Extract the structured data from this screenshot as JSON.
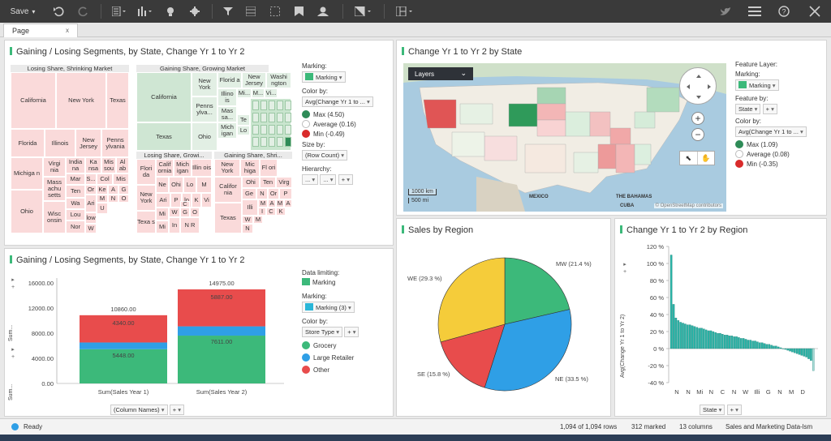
{
  "toolbar": {
    "save_label": "Save",
    "icons": [
      "undo-icon",
      "redo-icon",
      "visualization-list-icon",
      "bar-chart-icon",
      "lightbulb-icon",
      "gear-icon",
      "filter-icon",
      "data-table-icon",
      "select-icon",
      "bookmark-icon",
      "users-icon",
      "map-icon",
      "layout-icon",
      "twitter-icon",
      "menu-icon",
      "help-icon",
      "close-icon"
    ]
  },
  "tabs": [
    {
      "label": "Page",
      "close": "x"
    }
  ],
  "treemap_panel": {
    "title": "Gaining / Losing Segments, by State, Change Yr 1 to Yr 2",
    "headers": {
      "losing": "Losing Share, Shrinking Market",
      "gaining": "Gaining Share, Growing Market",
      "losing_growing": "Losing Share, Growi...",
      "gaining_shrinking": "Gaining Share, Shri..."
    },
    "cells": {
      "california_l": "California",
      "newyork_l": "New York",
      "texas_l": "Texas",
      "florida": "Florida",
      "illinois": "Illinois",
      "newjersey": "New Jersey",
      "pennsylvania": "Penns ylvania",
      "michigan": "Michiga n",
      "virginia": "Virgi nia",
      "india": "India na",
      "kansas": "Ka nsa",
      "missouri": "Mis sou",
      "alabama": "Al ab",
      "mass": "Mass achu setts",
      "mar": "Mar",
      "s": "S...",
      "col": "Col",
      "mis2": "Mis",
      "ten": "Ten",
      "or": "Or",
      "ke": "Ke",
      "a": "A",
      "g": "G",
      "wa": "Wa",
      "m": "M",
      "n": "N",
      "o": "O",
      "ohio_l": "Ohio",
      "wisc": "Wisc onsin",
      "lou": "Lou",
      "nor": "Nor",
      "ari": "Ari",
      "u": "U",
      "low": "low",
      "w": "W",
      "california_g": "California",
      "newyork_g": "New York",
      "florida_g": "Florid a",
      "newjersey_g": "New Jersey",
      "washington": "Washi ngton",
      "texas_g": "Texas",
      "illinois_g": "Illino is",
      "pennsylvania_g": "Penns ylva...",
      "mass_g": "Mas sa...",
      "michigan_g": "Mich igan",
      "ohio_g": "Ohio",
      "mi": "Mi...",
      "m2": "M...",
      "vi": "Vi...",
      "te": "Te",
      "lo": "Lo",
      "flor_ls": "Flori da",
      "calif_ls": "Calif ornia",
      "mich_ls": "Mich igan",
      "illin_ls": "Illin ois",
      "ne": "Ne",
      "ohi": "Ohi",
      "lo2": "Lo",
      "m3": "M",
      "newyork_ls": "New York",
      "ari2": "Ari",
      "p": "P",
      "lo3": "lo",
      "k": "K",
      "vi2": "Vi",
      "texa_ls": "Texa s",
      "mi2": "Mi",
      "w2": "W",
      "g2": "G",
      "o2": "O",
      "c": "C",
      "min": "Mi",
      "in": "In",
      "nr": "N R",
      "newyork_gs": "New York",
      "mich_gs": "Mic higa",
      "fl_gs": "Fl ori",
      "calif_gs": "Califor nia",
      "ohi_gs": "Ohi",
      "ten_gs": "Ten",
      "virg_gs": "Virg",
      "ge": "Ge",
      "n2": "N",
      "or2": "Or",
      "p2": "P",
      "illi": "Illi",
      "m4": "M",
      "a2": "A",
      "m5": "M",
      "a3": "A",
      "i": "I",
      "c2": "C",
      "k2": "K",
      "texas_gs": "Texas",
      "w3": "W",
      "m6": "M",
      "n3": "N"
    },
    "side": {
      "marking_label": "Marking:",
      "marking_value": "Marking",
      "colorby_label": "Color by:",
      "colorby_value": "Avg(Change Yr 1 to ...",
      "max": "Max (4.50)",
      "avg": "Average (0.16)",
      "min": "Min (-0.49)",
      "sizeby_label": "Size by:",
      "sizeby_value": "(Row Count)",
      "hierarchy_label": "Hierarchy:",
      "hierarchy_value": "...",
      "hierarchy_value2": "...",
      "plus": "+"
    }
  },
  "map_panel": {
    "title": "Change Yr 1 to Yr 2 by State",
    "layers_label": "Layers",
    "scale_km": "1000 km",
    "scale_mi": "500 mi",
    "label_mexico": "MEXICO",
    "label_bahamas": "THE BAHAMAS",
    "label_cuba": "CUBA",
    "attribution": "© OpenStreetMap contributors",
    "side": {
      "feature_layer_label": "Feature Layer:",
      "marking_label": "Marking:",
      "marking_value": "Marking",
      "featureby_label": "Feature by:",
      "featureby_value": "State",
      "plus": "+",
      "colorby_label": "Color by:",
      "colorby_value": "Avg(Change Yr 1 to ...",
      "max": "Max (1.09)",
      "avg": "Average (0.08)",
      "min": "Min (-0.35)"
    }
  },
  "bar_panel": {
    "title": "Gaining / Losing Segments, by State, Change Yr 1 to Yr 2",
    "yaxis_labels": [
      "Sum...",
      "Sum..."
    ],
    "xaxis_value": "(Column Names)",
    "plus": "+",
    "side": {
      "datalimit_label": "Data limiting:",
      "datalimit_value": "Marking",
      "marking_label": "Marking:",
      "marking_value": "Marking (3)",
      "colorby_label": "Color by:",
      "colorby_value": "Store Type",
      "plus": "+",
      "legend": [
        "Grocery",
        "Large Retailer",
        "Other"
      ]
    }
  },
  "pie_panel": {
    "title": "Sales by Region"
  },
  "bar2_panel": {
    "title": "Change Yr 1 to Yr 2 by Region",
    "xaxis_value": "State",
    "plus": "+"
  },
  "status": {
    "ready": "Ready",
    "rows": "1,094 of 1,094 rows",
    "marked": "312 marked",
    "columns": "13 columns",
    "source": "Sales and Marketing Data-lsm"
  },
  "colors": {
    "green": "#3cb97a",
    "red": "#e84c4c",
    "blue": "#2f9fe6",
    "yellow": "#f5cc3a",
    "teal": "#2ab3a6",
    "max_green": "#2e8b57",
    "min_red": "#d92b2b"
  },
  "chart_data": [
    {
      "type": "bar",
      "stacked": true,
      "categories": [
        "Sum(Sales Year 1)",
        "Sum(Sales Year 2)"
      ],
      "series": [
        {
          "name": "Grocery",
          "values": [
            5448,
            7611
          ]
        },
        {
          "name": "Large Retailer",
          "values": [
            1072,
            1477
          ]
        },
        {
          "name": "Other",
          "values": [
            4340,
            5887
          ]
        }
      ],
      "totals": [
        10860,
        14975
      ],
      "value_labels": {
        "totals": [
          "10860.00",
          "14975.00"
        ],
        "grocery": [
          "5448.00",
          "7611.00"
        ],
        "other": [
          "4340.00",
          "5887.00"
        ]
      },
      "yticks": [
        "0.00",
        "4000.00",
        "8000.00",
        "12000.00",
        "16000.00"
      ],
      "ylim": [
        0,
        16000
      ]
    },
    {
      "type": "pie",
      "slices": [
        {
          "label": "MW (21.4 %)",
          "value": 21.4,
          "color": "#3cb97a"
        },
        {
          "label": "NE (33.5 %)",
          "value": 33.5,
          "color": "#2f9fe6"
        },
        {
          "label": "SE (15.8 %)",
          "value": 15.8,
          "color": "#e84c4c"
        },
        {
          "label": "WE (29.3 %)",
          "value": 29.3,
          "color": "#f5cc3a"
        }
      ]
    },
    {
      "type": "bar",
      "ylabel": "Avg(Change Yr 1 to Yr 2)",
      "yticks": [
        "-40 %",
        "-20 %",
        "0 %",
        "20 %",
        "40 %",
        "60 %",
        "80 %",
        "100 %",
        "120 %"
      ],
      "ylim": [
        -40,
        120
      ],
      "tick_labels": [
        "N",
        "N",
        "Mi",
        "N",
        "C",
        "N",
        "W",
        "Illi",
        "G",
        "N",
        "M",
        "D"
      ],
      "values": [
        110,
        52,
        36,
        33,
        31,
        30,
        29,
        28,
        28,
        27,
        26,
        25,
        24,
        24,
        23,
        22,
        21,
        21,
        20,
        19,
        18,
        18,
        17,
        16,
        16,
        15,
        15,
        14,
        14,
        13,
        12,
        12,
        11,
        10,
        10,
        9,
        9,
        8,
        7,
        7,
        6,
        5,
        5,
        4,
        3,
        3,
        2,
        1,
        0,
        -1,
        -2,
        -3,
        -4,
        -5,
        -6,
        -7,
        -8,
        -9,
        -10,
        -12,
        -14,
        -26
      ]
    }
  ]
}
